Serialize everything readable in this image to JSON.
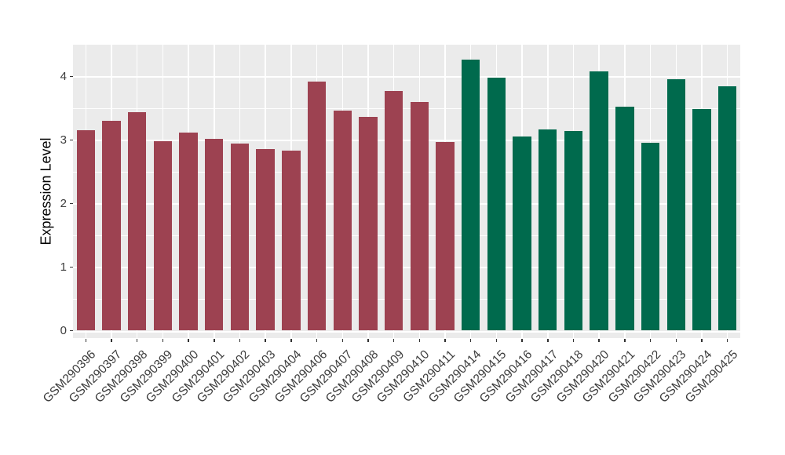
{
  "figure": {
    "background": "#FFFFFF",
    "panel_background": "#EBEBEB",
    "gridline_color": "#FFFFFF",
    "axis_tick_color": "#333333",
    "axis_text_color": "#3C3C3C",
    "axis_title_color": "#000000"
  },
  "chart_data": {
    "type": "bar",
    "title": "",
    "xlabel": "",
    "ylabel": "Expression Level",
    "legend_position": "none",
    "grid": "major and minor horizontal white gridlines, major vertical gridlines behind bars",
    "ylim": [
      0,
      4.5
    ],
    "y_ticks": [
      0,
      1,
      2,
      3,
      4
    ],
    "y_minor_ticks": [
      0.5,
      1.5,
      2.5,
      3.5
    ],
    "categories": [
      "GSM290396",
      "GSM290397",
      "GSM290398",
      "GSM290399",
      "GSM290400",
      "GSM290401",
      "GSM290402",
      "GSM290403",
      "GSM290404",
      "GSM290406",
      "GSM290407",
      "GSM290408",
      "GSM290409",
      "GSM290410",
      "GSM290411",
      "GSM290414",
      "GSM290415",
      "GSM290416",
      "GSM290417",
      "GSM290418",
      "GSM290420",
      "GSM290421",
      "GSM290422",
      "GSM290423",
      "GSM290424",
      "GSM290425"
    ],
    "series": [
      {
        "name": "Expression Level",
        "values": [
          3.15,
          3.3,
          3.44,
          2.98,
          3.12,
          3.02,
          2.94,
          2.86,
          2.83,
          3.92,
          3.46,
          3.36,
          3.77,
          3.6,
          2.97,
          4.27,
          3.98,
          3.05,
          3.17,
          3.14,
          4.08,
          3.52,
          2.96,
          3.96,
          3.49,
          3.85
        ]
      }
    ],
    "bar_groups": [
      "group1",
      "group1",
      "group1",
      "group1",
      "group1",
      "group1",
      "group1",
      "group1",
      "group1",
      "group1",
      "group1",
      "group1",
      "group1",
      "group1",
      "group1",
      "group2",
      "group2",
      "group2",
      "group2",
      "group2",
      "group2",
      "group2",
      "group2",
      "group2",
      "group2",
      "group2"
    ],
    "group_colors": {
      "group1": "#9D4251",
      "group2": "#006A4D"
    }
  }
}
